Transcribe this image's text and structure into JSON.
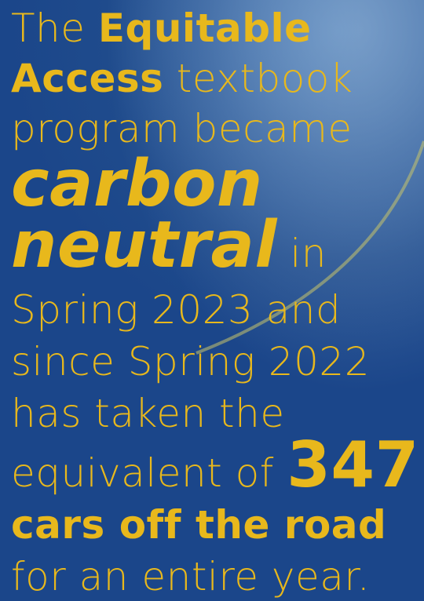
{
  "lines": [
    [
      "The ",
      "Equitable"
    ],
    [
      "Access",
      " textbook"
    ],
    [
      "program became"
    ],
    [
      "carbon"
    ],
    [
      "neutral",
      " in"
    ],
    [
      "Spring 2023 and"
    ],
    [
      "since Spring 2022"
    ],
    [
      "has taken the"
    ],
    [
      "equivalent of ",
      "347"
    ],
    [
      "cars off the road"
    ],
    [
      "for an entire year."
    ]
  ]
}
